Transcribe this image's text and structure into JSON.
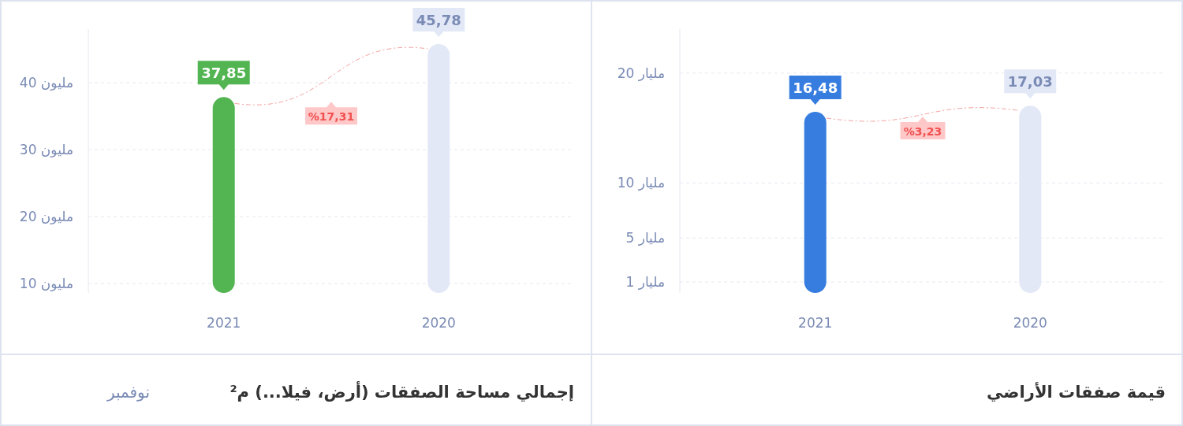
{
  "chart_data": [
    {
      "type": "bar",
      "title": "قيمة صفقات الأراضي",
      "categories": [
        "2021",
        "2020"
      ],
      "values": [
        16.48,
        17.03
      ],
      "colors": [
        "#377de0",
        "#e3e8f7"
      ],
      "value_labels": [
        "16,48",
        "17,03"
      ],
      "ylim": [
        0,
        24
      ],
      "yticks": [
        {
          "value": 1,
          "label": "1 مليار"
        },
        {
          "value": 5,
          "label": "5 مليار"
        },
        {
          "value": 10,
          "label": "10 مليار"
        },
        {
          "value": 20,
          "label": "20 مليار"
        }
      ],
      "grid": "y",
      "annotations": [
        "%3,23"
      ]
    },
    {
      "type": "bar",
      "title": "إجمالي مساحة الصفقات (أرض، فيلا...) م²",
      "subtitle": "نوفمبر",
      "categories": [
        "2021",
        "2020"
      ],
      "values": [
        37.85,
        45.78
      ],
      "colors": [
        "#52b551",
        "#e3e8f7"
      ],
      "value_labels": [
        "37,85",
        "45,78"
      ],
      "ylim": [
        8.6,
        48
      ],
      "yticks": [
        {
          "value": 10,
          "label": "10 مليون"
        },
        {
          "value": 20,
          "label": "20 مليون"
        },
        {
          "value": 30,
          "label": "30 مليون"
        },
        {
          "value": 40,
          "label": "40 مليون"
        }
      ],
      "grid": "y",
      "annotations": [
        "%17,31"
      ]
    }
  ]
}
